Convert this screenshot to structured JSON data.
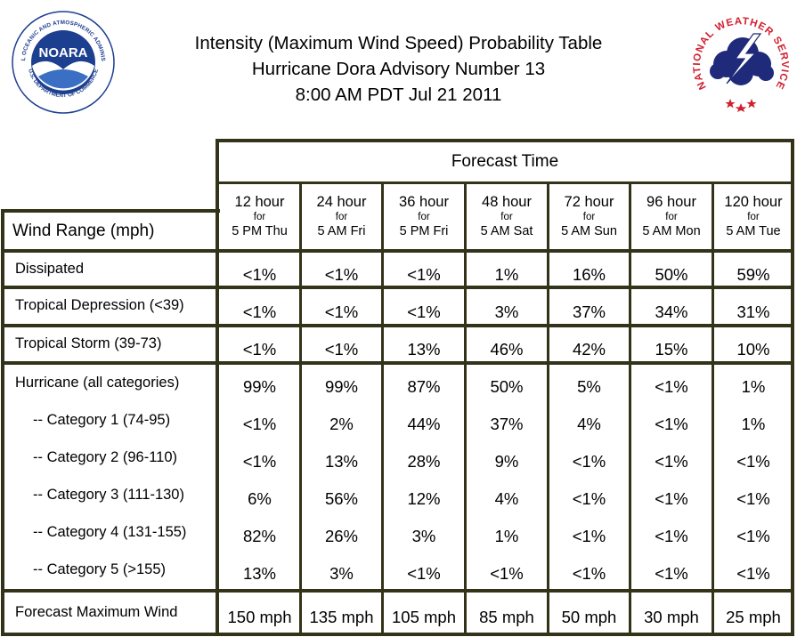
{
  "title": {
    "line1": "Intensity (Maximum Wind Speed) Probability Table",
    "line2": "Hurricane Dora Advisory Number 13",
    "line3": "8:00 AM PDT Jul 21 2011"
  },
  "logos": {
    "left": {
      "text": "NOARA",
      "ring": "NATIONAL OCEANIC AND ATMOSPHERIC ADMINISTRATION",
      "ring_bottom": "U.S. DEPARTMENT OF COMMERCE"
    },
    "right": {
      "ring": "NATIONAL WEATHER SERVICE"
    }
  },
  "colors": {
    "grid": "#33331a",
    "noaa_blue": "#1d3f8f",
    "nws_red": "#d0202f"
  },
  "table": {
    "forecast_time_label": "Forecast Time",
    "wind_range_label": "Wind Range (mph)",
    "columns": [
      {
        "hour": "12 hour",
        "for": "for",
        "when": "5 PM Thu"
      },
      {
        "hour": "24 hour",
        "for": "for",
        "when": "5 AM Fri"
      },
      {
        "hour": "36 hour",
        "for": "for",
        "when": "5 PM Fri"
      },
      {
        "hour": "48 hour",
        "for": "for",
        "when": "5 AM Sat"
      },
      {
        "hour": "72 hour",
        "for": "for",
        "when": "5 AM Sun"
      },
      {
        "hour": "96 hour",
        "for": "for",
        "when": "5 AM Mon"
      },
      {
        "hour": "120 hour",
        "for": "for",
        "when": "5 AM Tue"
      }
    ],
    "rows": [
      {
        "label": "Dissipated",
        "values": [
          "<1%",
          "<1%",
          "<1%",
          "1%",
          "16%",
          "50%",
          "59%"
        ]
      },
      {
        "label": "Tropical Depression (<39)",
        "values": [
          "<1%",
          "<1%",
          "<1%",
          "3%",
          "37%",
          "34%",
          "31%"
        ]
      },
      {
        "label": "Tropical Storm (39-73)",
        "values": [
          "<1%",
          "<1%",
          "13%",
          "46%",
          "42%",
          "15%",
          "10%"
        ]
      }
    ],
    "hurricane": {
      "label": "Hurricane (all categories)",
      "values": [
        "99%",
        "99%",
        "87%",
        "50%",
        "5%",
        "<1%",
        "1%"
      ],
      "categories": [
        {
          "label": "-- Category 1 (74-95)",
          "values": [
            "<1%",
            "2%",
            "44%",
            "37%",
            "4%",
            "<1%",
            "1%"
          ]
        },
        {
          "label": "-- Category 2 (96-110)",
          "values": [
            "<1%",
            "13%",
            "28%",
            "9%",
            "<1%",
            "<1%",
            "<1%"
          ]
        },
        {
          "label": "-- Category 3 (111-130)",
          "values": [
            "6%",
            "56%",
            "12%",
            "4%",
            "<1%",
            "<1%",
            "<1%"
          ]
        },
        {
          "label": "-- Category 4 (131-155)",
          "values": [
            "82%",
            "26%",
            "3%",
            "1%",
            "<1%",
            "<1%",
            "<1%"
          ]
        },
        {
          "label": "-- Category 5 (>155)",
          "values": [
            "13%",
            "3%",
            "<1%",
            "<1%",
            "<1%",
            "<1%",
            "<1%"
          ]
        }
      ]
    },
    "forecast_max_wind": {
      "label": "Forecast Maximum Wind",
      "values": [
        "150 mph",
        "135 mph",
        "105 mph",
        "85 mph",
        "50 mph",
        "30 mph",
        "25 mph"
      ]
    }
  }
}
